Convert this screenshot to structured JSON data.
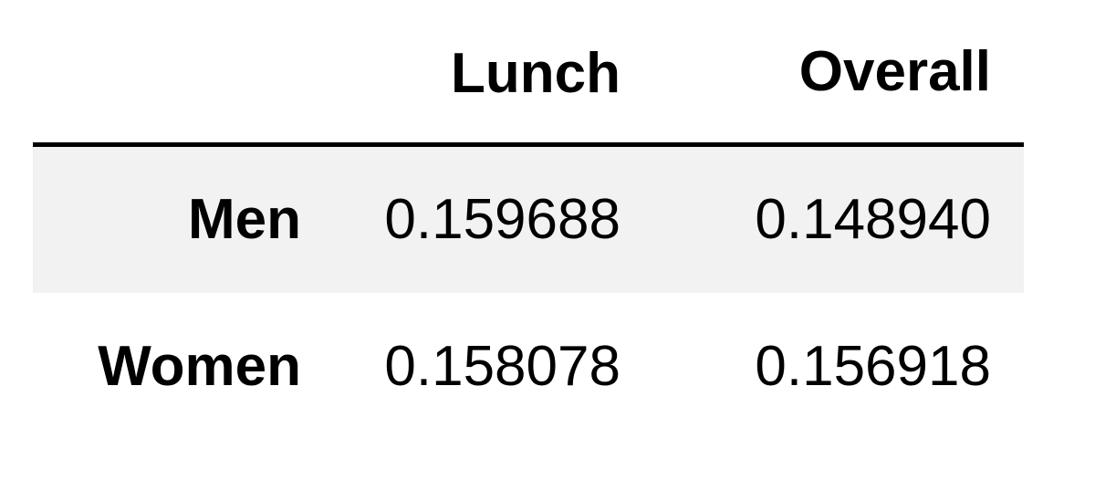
{
  "table": {
    "columns": [
      "",
      "Lunch",
      "Overall"
    ],
    "rows": [
      {
        "label": "Men",
        "values": [
          "0.159688",
          "0.148940"
        ]
      },
      {
        "label": "Women",
        "values": [
          "0.158078",
          "0.156918"
        ]
      }
    ],
    "colors": {
      "striped_row_background": "#f2f2f2",
      "header_rule": "#000000",
      "text": "#000000"
    }
  }
}
